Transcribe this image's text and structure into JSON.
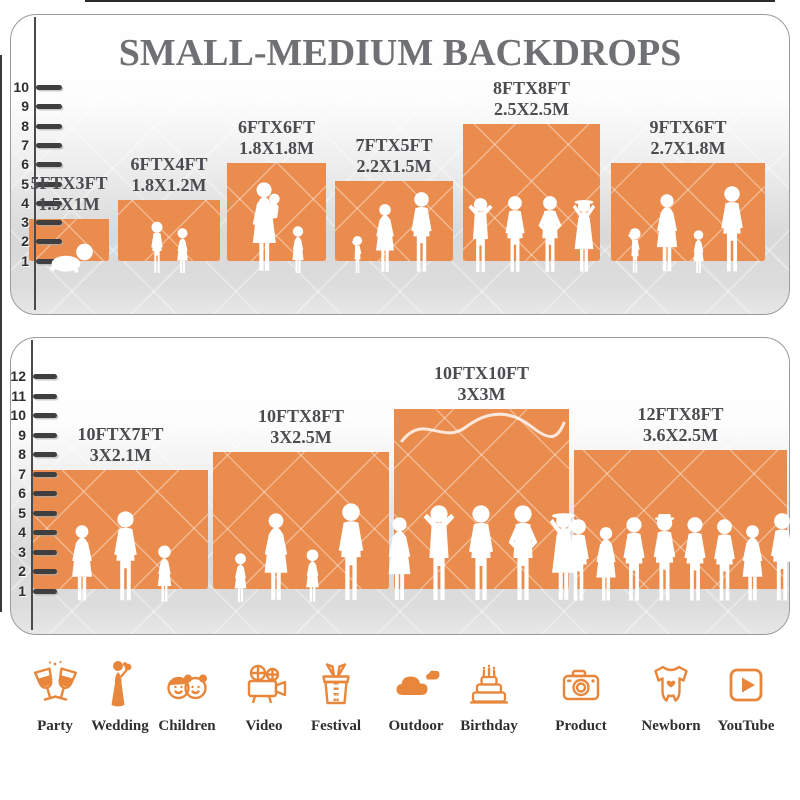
{
  "title": "SMALL-MEDIUM BACKDROPS",
  "colors": {
    "backdrop_orange": "#EA8C4D",
    "icon_orange": "#E8873B",
    "title_gray": "#6F7073",
    "label_gray": "#4B4C50"
  },
  "sections": [
    {
      "name": "small-backdrops",
      "ruler_ticks": [
        1,
        2,
        3,
        4,
        5,
        6,
        7,
        8,
        9,
        10
      ],
      "backdrops": [
        {
          "ft_label": "5FTX3FT",
          "m_label": "1.5X1M",
          "people": [
            "baby"
          ]
        },
        {
          "ft_label": "6FTX4FT",
          "m_label": "1.8X1.2M",
          "people": [
            "boy",
            "girl"
          ]
        },
        {
          "ft_label": "6FTX6FT",
          "m_label": "1.8X1.8M",
          "people": [
            "mother",
            "girl"
          ]
        },
        {
          "ft_label": "7FTX5FT",
          "m_label": "2.2X1.5M",
          "people": [
            "toddler",
            "woman",
            "man"
          ]
        },
        {
          "ft_label": "8FTX8FT",
          "m_label": "2.5X2.5M",
          "people": [
            "man-armsup",
            "man",
            "man-hips",
            "woman-hat"
          ]
        },
        {
          "ft_label": "9FTX6FT",
          "m_label": "2.7X1.8M",
          "people": [
            "toddler",
            "woman",
            "girl",
            "man"
          ]
        }
      ]
    },
    {
      "name": "medium-backdrops",
      "ruler_ticks": [
        1,
        2,
        3,
        4,
        5,
        6,
        7,
        8,
        9,
        10,
        11,
        12
      ],
      "backdrops": [
        {
          "ft_label": "10FTX7FT",
          "m_label": "3X2.1M",
          "people": [
            "woman",
            "man",
            "girl"
          ]
        },
        {
          "ft_label": "10FTX8FT",
          "m_label": "3X2.5M",
          "people": [
            "girl",
            "woman",
            "girl",
            "man"
          ]
        },
        {
          "ft_label": "10FTX10FT",
          "m_label": "3X3M",
          "people": [
            "woman",
            "man-armsup",
            "man",
            "man-hips",
            "woman-hat"
          ]
        },
        {
          "ft_label": "12FTX8FT",
          "m_label": "3.6X2.5M",
          "people": [
            "man",
            "woman",
            "man",
            "man-hat",
            "man",
            "man",
            "woman",
            "man"
          ]
        }
      ]
    }
  ],
  "categories": [
    {
      "label": "Party",
      "icon": "party-icon"
    },
    {
      "label": "Wedding",
      "icon": "wedding-icon"
    },
    {
      "label": "Children",
      "icon": "children-icon"
    },
    {
      "label": "Video",
      "icon": "video-icon"
    },
    {
      "label": "Festival",
      "icon": "festival-icon"
    },
    {
      "label": "Outdoor",
      "icon": "outdoor-icon"
    },
    {
      "label": "Birthday",
      "icon": "birthday-icon"
    },
    {
      "label": "Product",
      "icon": "product-icon"
    },
    {
      "label": "Newborn",
      "icon": "newborn-icon"
    },
    {
      "label": "YouTube",
      "icon": "youtube-icon"
    }
  ]
}
